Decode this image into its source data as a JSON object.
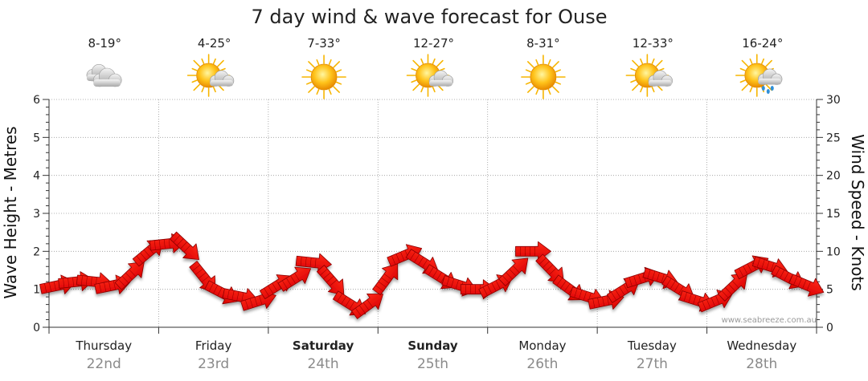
{
  "chart_data": {
    "type": "line",
    "title": "7 day wind & wave forecast for Ouse",
    "ylabel_left": "Wave Height - Metres",
    "ylabel_right": "Wind Speed - Knots",
    "ylim_left": [
      0,
      6
    ],
    "ylim_right": [
      0,
      30
    ],
    "yticks_left": [
      "0",
      "1",
      "2",
      "3",
      "4",
      "5",
      "6"
    ],
    "yticks_right": [
      "0",
      "5",
      "10",
      "15",
      "20",
      "25",
      "30"
    ],
    "grid": true,
    "days": [
      {
        "day": "Thursday",
        "date": "22nd",
        "temp": "8-19°",
        "weather_icon": "cloudy-icon",
        "bold": false
      },
      {
        "day": "Friday",
        "date": "23rd",
        "temp": "4-25°",
        "weather_icon": "partly-cloudy-icon",
        "bold": false
      },
      {
        "day": "Saturday",
        "date": "24th",
        "temp": "7-33°",
        "weather_icon": "sunny-icon",
        "bold": true
      },
      {
        "day": "Sunday",
        "date": "25th",
        "temp": "12-27°",
        "weather_icon": "partly-cloudy-icon",
        "bold": true
      },
      {
        "day": "Monday",
        "date": "26th",
        "temp": "8-31°",
        "weather_icon": "sunny-icon",
        "bold": false
      },
      {
        "day": "Tuesday",
        "date": "27th",
        "temp": "12-33°",
        "weather_icon": "partly-cloudy-icon",
        "bold": false
      },
      {
        "day": "Wednesday",
        "date": "28th",
        "temp": "16-24°",
        "weather_icon": "showers-icon",
        "bold": false
      }
    ],
    "series": [
      {
        "name": "Wind Speed (knots)",
        "axis": "right",
        "color": "#ff0000",
        "x": [
          0,
          0.167,
          0.333,
          0.5,
          0.667,
          0.833,
          1,
          1.167,
          1.333,
          1.5,
          1.667,
          1.833,
          2,
          2.167,
          2.333,
          2.5,
          2.667,
          2.833,
          3,
          3.167,
          3.333,
          3.5,
          3.667,
          3.833,
          4,
          4.167,
          4.333,
          4.5,
          4.667,
          4.833,
          5,
          5.167,
          5.333,
          5.5,
          5.667,
          5.833,
          6,
          6.167,
          6.333,
          6.5,
          6.667,
          6.833
        ],
        "values": [
          5.5,
          6,
          6,
          5.5,
          7,
          10,
          11,
          10.5,
          6.5,
          4.5,
          4,
          3.5,
          5.5,
          6.5,
          8.5,
          6,
          3,
          3,
          6.5,
          9.5,
          8.5,
          6.5,
          5.5,
          5,
          5.5,
          7.5,
          10,
          7.5,
          5,
          4,
          3.5,
          5,
          6.5,
          6.5,
          5,
          3.5,
          3.5,
          5.5,
          8,
          8,
          6.5,
          5.5
        ]
      }
    ],
    "credit": "www.seabreeze.com.au"
  }
}
